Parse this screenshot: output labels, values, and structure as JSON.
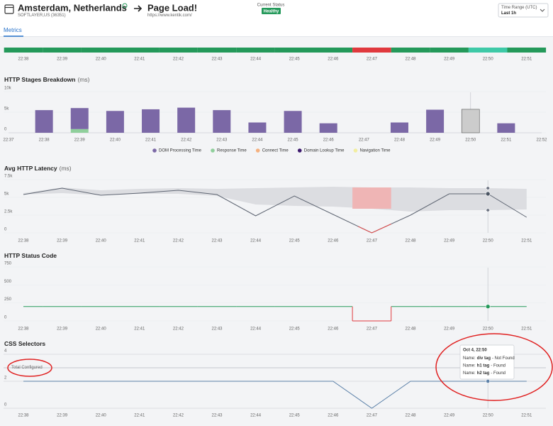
{
  "header": {
    "title": "Amsterdam, Netherlands",
    "subtitle": "SOFTLAYER,US (36351)",
    "target_title": "Page Load!",
    "target_url": "https://www.kentik.com/",
    "status_label": "Current Status",
    "status": "Healthy",
    "time_range_label": "Time Range (UTC)",
    "time_range": "Last 1h"
  },
  "tabs": [
    "Metrics"
  ],
  "chart_data": [
    {
      "type": "status",
      "categories": [
        "22:38",
        "22:39",
        "22:40",
        "22:41",
        "22:42",
        "22:43",
        "22:44",
        "22:45",
        "22:46",
        "22:47",
        "22:48",
        "22:49",
        "22:50",
        "22:51"
      ],
      "colors": [
        "#24995a",
        "#24995a",
        "#24995a",
        "#24995a",
        "#24995a",
        "#24995a",
        "#24995a",
        "#24995a",
        "#24995a",
        "#e0393e",
        "#24995a",
        "#24995a",
        "#3ec9a7",
        "#24995a"
      ]
    },
    {
      "type": "stacked_bar",
      "title": "HTTP Stages Breakdown",
      "unit": "(ms)",
      "categories": [
        "22:37",
        "22:38",
        "22:39",
        "22:40",
        "22:41",
        "22:42",
        "22:43",
        "22:44",
        "22:45",
        "22:46",
        "22:47",
        "22:48",
        "22:49",
        "22:50",
        "22:51",
        "22:52"
      ],
      "series": [
        {
          "name": "DOM Processing Time",
          "color": "#7b68a6",
          "values": [
            null,
            5500,
            5100,
            5300,
            5700,
            6100,
            5500,
            2500,
            5300,
            2300,
            null,
            2500,
            5600,
            5700,
            2300,
            null
          ]
        },
        {
          "name": "Response Time",
          "color": "#8fcf9b",
          "values": [
            null,
            0,
            900,
            0,
            0,
            0,
            0,
            0,
            0,
            0,
            null,
            0,
            0,
            0,
            0,
            null
          ]
        },
        {
          "name": "Connect Time",
          "color": "#f5b17f",
          "values": [
            null,
            0,
            0,
            0,
            0,
            0,
            0,
            0,
            0,
            0,
            null,
            0,
            0,
            0,
            0,
            null
          ]
        },
        {
          "name": "Domain Lookup Time",
          "color": "#3d1a6e",
          "values": [
            null,
            0,
            0,
            0,
            0,
            0,
            0,
            0,
            0,
            0,
            null,
            0,
            0,
            0,
            0,
            null
          ]
        },
        {
          "name": "Navigation Time",
          "color": "#f2eea0",
          "values": [
            null,
            0,
            0,
            0,
            0,
            0,
            0,
            0,
            0,
            0,
            null,
            0,
            0,
            0,
            0,
            null
          ]
        }
      ],
      "ylim": [
        0,
        10000
      ],
      "yticks": [
        0,
        {
          "value": 5000,
          "label": "5k"
        },
        {
          "value": 10000,
          "label": "10k"
        }
      ],
      "crosshair": "22:50",
      "highlight_color": "#cccccc"
    },
    {
      "type": "band_line",
      "title": "Avg HTTP Latency",
      "unit": "(ms)",
      "categories": [
        "22:38",
        "22:39",
        "22:40",
        "22:41",
        "22:42",
        "22:43",
        "22:44",
        "22:45",
        "22:46",
        "22:47",
        "22:48",
        "22:49",
        "22:50",
        "22:51"
      ],
      "values": [
        5400,
        6300,
        5300,
        5600,
        6000,
        5400,
        2400,
        5200,
        2600,
        0,
        2500,
        5500,
        5500,
        2200
      ],
      "band_lower": [
        5400,
        5600,
        5300,
        5500,
        5500,
        5200,
        4000,
        3800,
        3700,
        3400,
        3000,
        3200,
        3200,
        3300
      ],
      "band_upper": [
        5600,
        6400,
        6000,
        6200,
        6300,
        6200,
        6300,
        6400,
        6500,
        6400,
        6400,
        6300,
        6300,
        6200
      ],
      "color": "#5f6673",
      "band_color": "#dcdde1",
      "alert": [
        "22:47"
      ],
      "alert_color": "#e04848",
      "alert_band_color": "#efb5b5",
      "ylim": [
        0,
        7500
      ],
      "yticks": [
        0,
        {
          "value": 2500,
          "label": "2.5k"
        },
        {
          "value": 5000,
          "label": "5k"
        },
        {
          "value": 7500,
          "label": "7.5k"
        }
      ],
      "crosshair": "22:50"
    },
    {
      "type": "step_line",
      "title": "HTTP Status Code",
      "categories": [
        "22:38",
        "22:39",
        "22:40",
        "22:41",
        "22:42",
        "22:43",
        "22:44",
        "22:45",
        "22:46",
        "22:47",
        "22:48",
        "22:49",
        "22:50",
        "22:51"
      ],
      "values": [
        200,
        200,
        200,
        200,
        200,
        200,
        200,
        200,
        200,
        0,
        200,
        200,
        200,
        200
      ],
      "color": "#24995a",
      "alert": [
        "22:47"
      ],
      "alert_color": "#e0393e",
      "ylim": [
        0,
        750
      ],
      "yticks": [
        0,
        250,
        500,
        750
      ],
      "crosshair": "22:50"
    },
    {
      "type": "line",
      "title": "CSS Selectors",
      "categories": [
        "22:38",
        "22:39",
        "22:40",
        "22:41",
        "22:42",
        "22:43",
        "22:44",
        "22:45",
        "22:46",
        "22:47",
        "22:48",
        "22:49",
        "22:50",
        "22:51"
      ],
      "values": [
        2,
        2,
        2,
        2,
        2,
        2,
        2,
        2,
        2,
        0,
        2,
        2,
        2,
        2
      ],
      "color": "#5b80a8",
      "ylim": [
        0,
        4
      ],
      "yticks": [
        0,
        2,
        4
      ],
      "grid": true,
      "reference": {
        "label": "Total Configured",
        "value": 3
      },
      "crosshair": "22:50",
      "tooltip": {
        "title": "Oct 4, 22:50",
        "rows": [
          {
            "label": "Name:",
            "selector": "div tag",
            "result": "- Not Found"
          },
          {
            "label": "Name:",
            "selector": "h1 tag",
            "result": "- Found"
          },
          {
            "label": "Name:",
            "selector": "h2 tag",
            "result": "- Found"
          }
        ]
      }
    }
  ]
}
